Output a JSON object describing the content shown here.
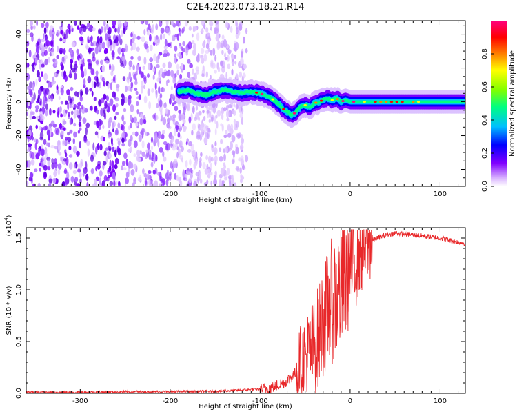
{
  "title": "C2E4.2023.073.18.21.R14",
  "chart_data": [
    {
      "type": "heatmap",
      "name": "spectrogram",
      "xlabel": "Height of straight line (km)",
      "ylabel": "Frequency (Hz)",
      "xlim": [
        -360,
        128
      ],
      "ylim": [
        -50,
        48
      ],
      "x_ticks": [
        -300,
        -200,
        -100,
        0,
        100
      ],
      "x_tick_labels": [
        "-300",
        "-200",
        "-100",
        "0",
        "100"
      ],
      "y_ticks": [
        -40,
        -20,
        0,
        20,
        40
      ],
      "y_tick_labels": [
        "-40",
        "-20",
        "0",
        "20",
        "40"
      ],
      "noise_region_x": [
        -360,
        -115
      ],
      "signal_ridge": {
        "x": [
          -190,
          -180,
          -170,
          -160,
          -150,
          -140,
          -130,
          -120,
          -110,
          -100,
          -90,
          -80,
          -75,
          -70,
          -65,
          -60,
          -55,
          -50,
          -45,
          -40,
          -35,
          -30,
          -25,
          -20,
          -15,
          -10,
          -5,
          0,
          20,
          40,
          60,
          80,
          100,
          128
        ],
        "y": [
          6,
          7,
          5,
          4,
          6,
          7,
          6,
          5,
          6,
          5,
          3,
          -1,
          -4,
          -6,
          -8,
          -6,
          -3,
          -2,
          -3,
          -1,
          0,
          1,
          2,
          1,
          2,
          0,
          1,
          0,
          0,
          0,
          0,
          0,
          0,
          0
        ]
      },
      "colorbar": {
        "label": "Normalized spectral amplitude",
        "range": [
          0,
          1
        ],
        "ticks": [
          0.0,
          0.2,
          0.4,
          0.6,
          0.8
        ],
        "tick_labels": [
          "0.0",
          "0.2",
          "0.4",
          "0.6",
          "0.8"
        ],
        "colors": [
          "#ffffff",
          "#d9b3ff",
          "#8000ff",
          "#0000ff",
          "#00bfff",
          "#00ff80",
          "#80ff00",
          "#ffff00",
          "#ff8000",
          "#ff0000",
          "#ff0080"
        ]
      }
    },
    {
      "type": "line",
      "name": "snr",
      "xlabel": "Height of straight line (km)",
      "ylabel": "SNR (10 * v/v)",
      "y_multiplier_label": "(x10",
      "y_multiplier_exp": "4",
      "y_multiplier_close": ")",
      "xlim": [
        -360,
        128
      ],
      "ylim": [
        0,
        1.6
      ],
      "x_ticks": [
        -300,
        -200,
        -100,
        0,
        100
      ],
      "x_tick_labels": [
        "-300",
        "-200",
        "-100",
        "0",
        "100"
      ],
      "y_ticks": [
        0.0,
        0.5,
        1.0,
        1.5
      ],
      "y_tick_labels": [
        "0.0",
        "0.5",
        "1.0",
        "1.5"
      ],
      "line_color": "#e8282a",
      "series": [
        {
          "x": [
            -360,
            -300,
            -250,
            -200,
            -150,
            -120,
            -100,
            -90,
            -80,
            -70,
            -60,
            -55,
            -50,
            -45,
            -40,
            -35,
            -30,
            -25,
            -20,
            -15,
            -10,
            -5,
            0,
            5,
            10,
            20,
            30,
            40,
            50,
            60,
            70,
            80,
            90,
            100,
            110,
            120,
            128
          ],
          "y": [
            0.01,
            0.01,
            0.015,
            0.015,
            0.02,
            0.03,
            0.04,
            0.05,
            0.08,
            0.12,
            0.2,
            0.3,
            0.35,
            0.4,
            0.45,
            0.55,
            0.7,
            0.8,
            0.9,
            0.95,
            1.0,
            1.1,
            1.2,
            1.3,
            1.4,
            1.45,
            1.5,
            1.53,
            1.55,
            1.54,
            1.53,
            1.52,
            1.51,
            1.5,
            1.48,
            1.46,
            1.45
          ]
        }
      ]
    }
  ]
}
